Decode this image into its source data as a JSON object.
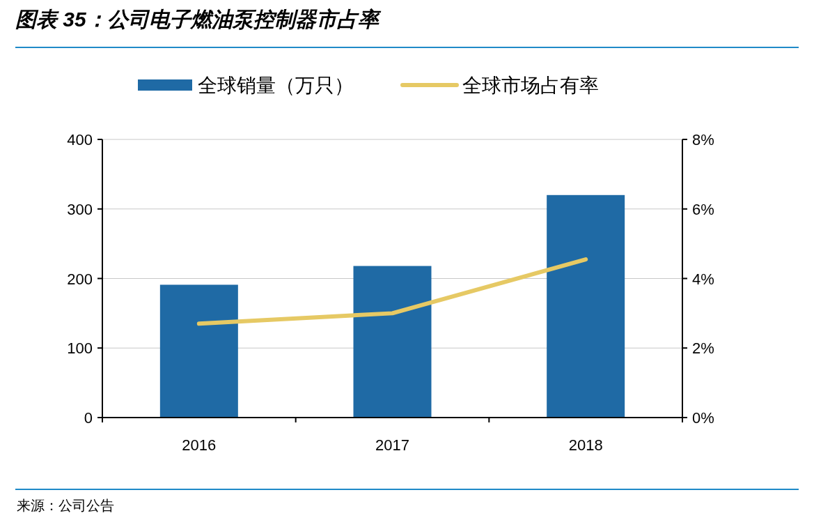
{
  "chart_data": {
    "type": "bar",
    "title": "图表 35：公司电子燃油泵控制器市占率",
    "categories": [
      "2016",
      "2017",
      "2018"
    ],
    "series": [
      {
        "name": "全球销量（万只）",
        "color": "#1f6aa5",
        "values": [
          191,
          218,
          320
        ]
      },
      {
        "name": "全球市场占有率",
        "type": "line",
        "axis": "y2",
        "color": "#e6c964",
        "values": [
          2.7,
          3.0,
          4.55
        ]
      }
    ],
    "ylim": [
      0,
      400
    ],
    "yticks": [
      0,
      100,
      200,
      300,
      400
    ],
    "y2lim": [
      0,
      8
    ],
    "y2ticks": [
      {
        "value": 0,
        "label": "0%"
      },
      {
        "value": 2,
        "label": "2%"
      },
      {
        "value": 4,
        "label": "4%"
      },
      {
        "value": 6,
        "label": "6%"
      },
      {
        "value": 8,
        "label": "8%"
      }
    ],
    "grid": "y",
    "legend": "top",
    "annotations": [
      "来源：公司公告"
    ]
  }
}
